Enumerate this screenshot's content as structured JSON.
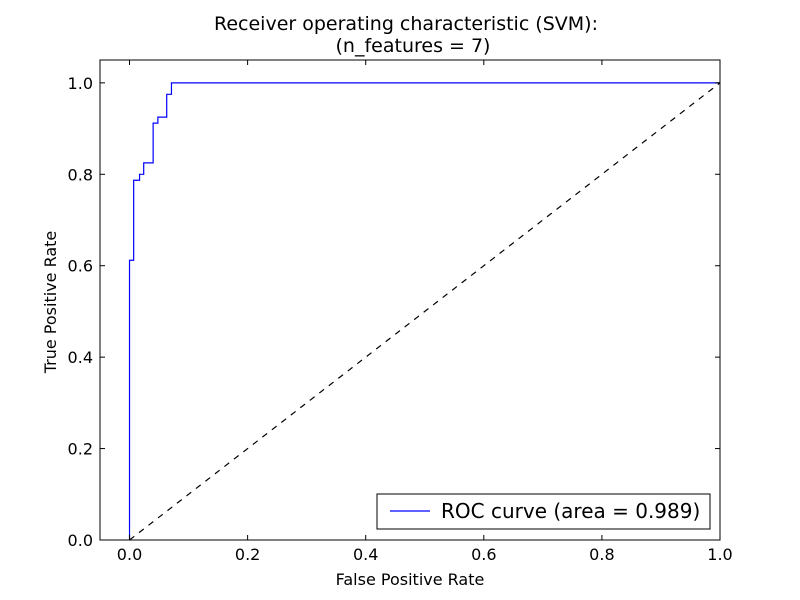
{
  "chart_data": {
    "type": "line",
    "title": "Receiver operating characteristic (SVM):",
    "subtitle": "(n_features = 7)",
    "xlabel": "False Positive Rate",
    "ylabel": "True Positive Rate",
    "xlim": [
      -0.05,
      1.0
    ],
    "ylim": [
      0.0,
      1.05
    ],
    "xticks": [
      0.0,
      0.2,
      0.4,
      0.6,
      0.8,
      1.0
    ],
    "xtick_labels": [
      "0.0",
      "0.2",
      "0.4",
      "0.6",
      "0.8",
      "1.0"
    ],
    "yticks": [
      0.0,
      0.2,
      0.4,
      0.6,
      0.8,
      1.0
    ],
    "ytick_labels": [
      "0.0",
      "0.2",
      "0.4",
      "0.6",
      "0.8",
      "1.0"
    ],
    "grid": false,
    "legend_position": "bottom-right",
    "series": [
      {
        "name": "ROC curve (area = 0.989)",
        "color": "#0000ff",
        "style": "solid",
        "x": [
          0.0,
          0.0,
          0.007,
          0.007,
          0.017,
          0.017,
          0.024,
          0.024,
          0.04,
          0.04,
          0.048,
          0.048,
          0.063,
          0.063,
          0.071,
          0.071,
          1.0
        ],
        "y": [
          0.0,
          0.612,
          0.612,
          0.787,
          0.787,
          0.8,
          0.8,
          0.825,
          0.825,
          0.912,
          0.912,
          0.925,
          0.925,
          0.975,
          0.975,
          1.0,
          1.0
        ]
      },
      {
        "name": "",
        "color": "#000000",
        "style": "dashed",
        "x": [
          0.0,
          1.0
        ],
        "y": [
          0.0,
          1.0
        ]
      }
    ]
  }
}
